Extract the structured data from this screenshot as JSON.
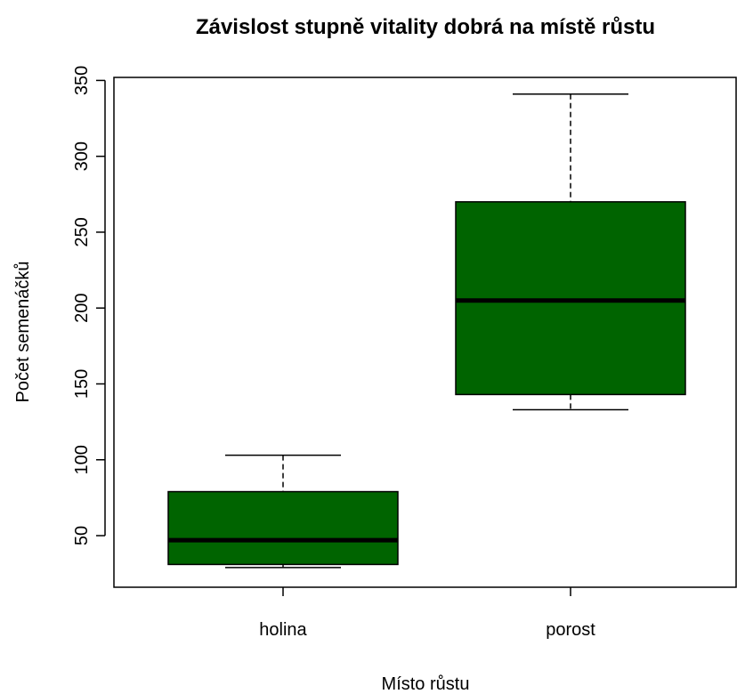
{
  "chart_data": {
    "type": "boxplot",
    "title": "Závislost stupně vitality dobrá na místě růstu",
    "x_label": "Místo růstu",
    "y_label": "Počet semenáčků",
    "categories": [
      "holina",
      "porost"
    ],
    "boxes": [
      {
        "min": 29,
        "q1": 31,
        "median": 47,
        "q3": 79,
        "max": 103
      },
      {
        "min": 133,
        "q1": 143,
        "median": 205,
        "q3": 270,
        "max": 341
      }
    ],
    "color": "#006400",
    "ylim": [
      16,
      352
    ],
    "yticks": [
      50,
      100,
      150,
      200,
      250,
      300,
      350
    ]
  }
}
